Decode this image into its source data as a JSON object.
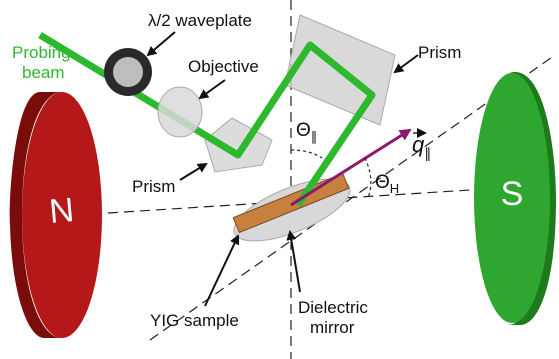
{
  "labels": {
    "waveplate": "λ/2 waveplate",
    "probing_beam": [
      "Probing",
      "beam"
    ],
    "objective": "Objective",
    "prism_top": "Prism",
    "prism_left": "Prism",
    "theta_parallel": {
      "symbol": "Θ",
      "subscript": "∥"
    },
    "q_parallel": {
      "symbol": "q",
      "subscript": "∥"
    },
    "theta_h": {
      "symbol": "Θ",
      "subscript": "H"
    },
    "north": "N",
    "south": "S",
    "yig_sample": "YIG sample",
    "dielectric_mirror": [
      "Dielectric",
      "mirror"
    ]
  }
}
